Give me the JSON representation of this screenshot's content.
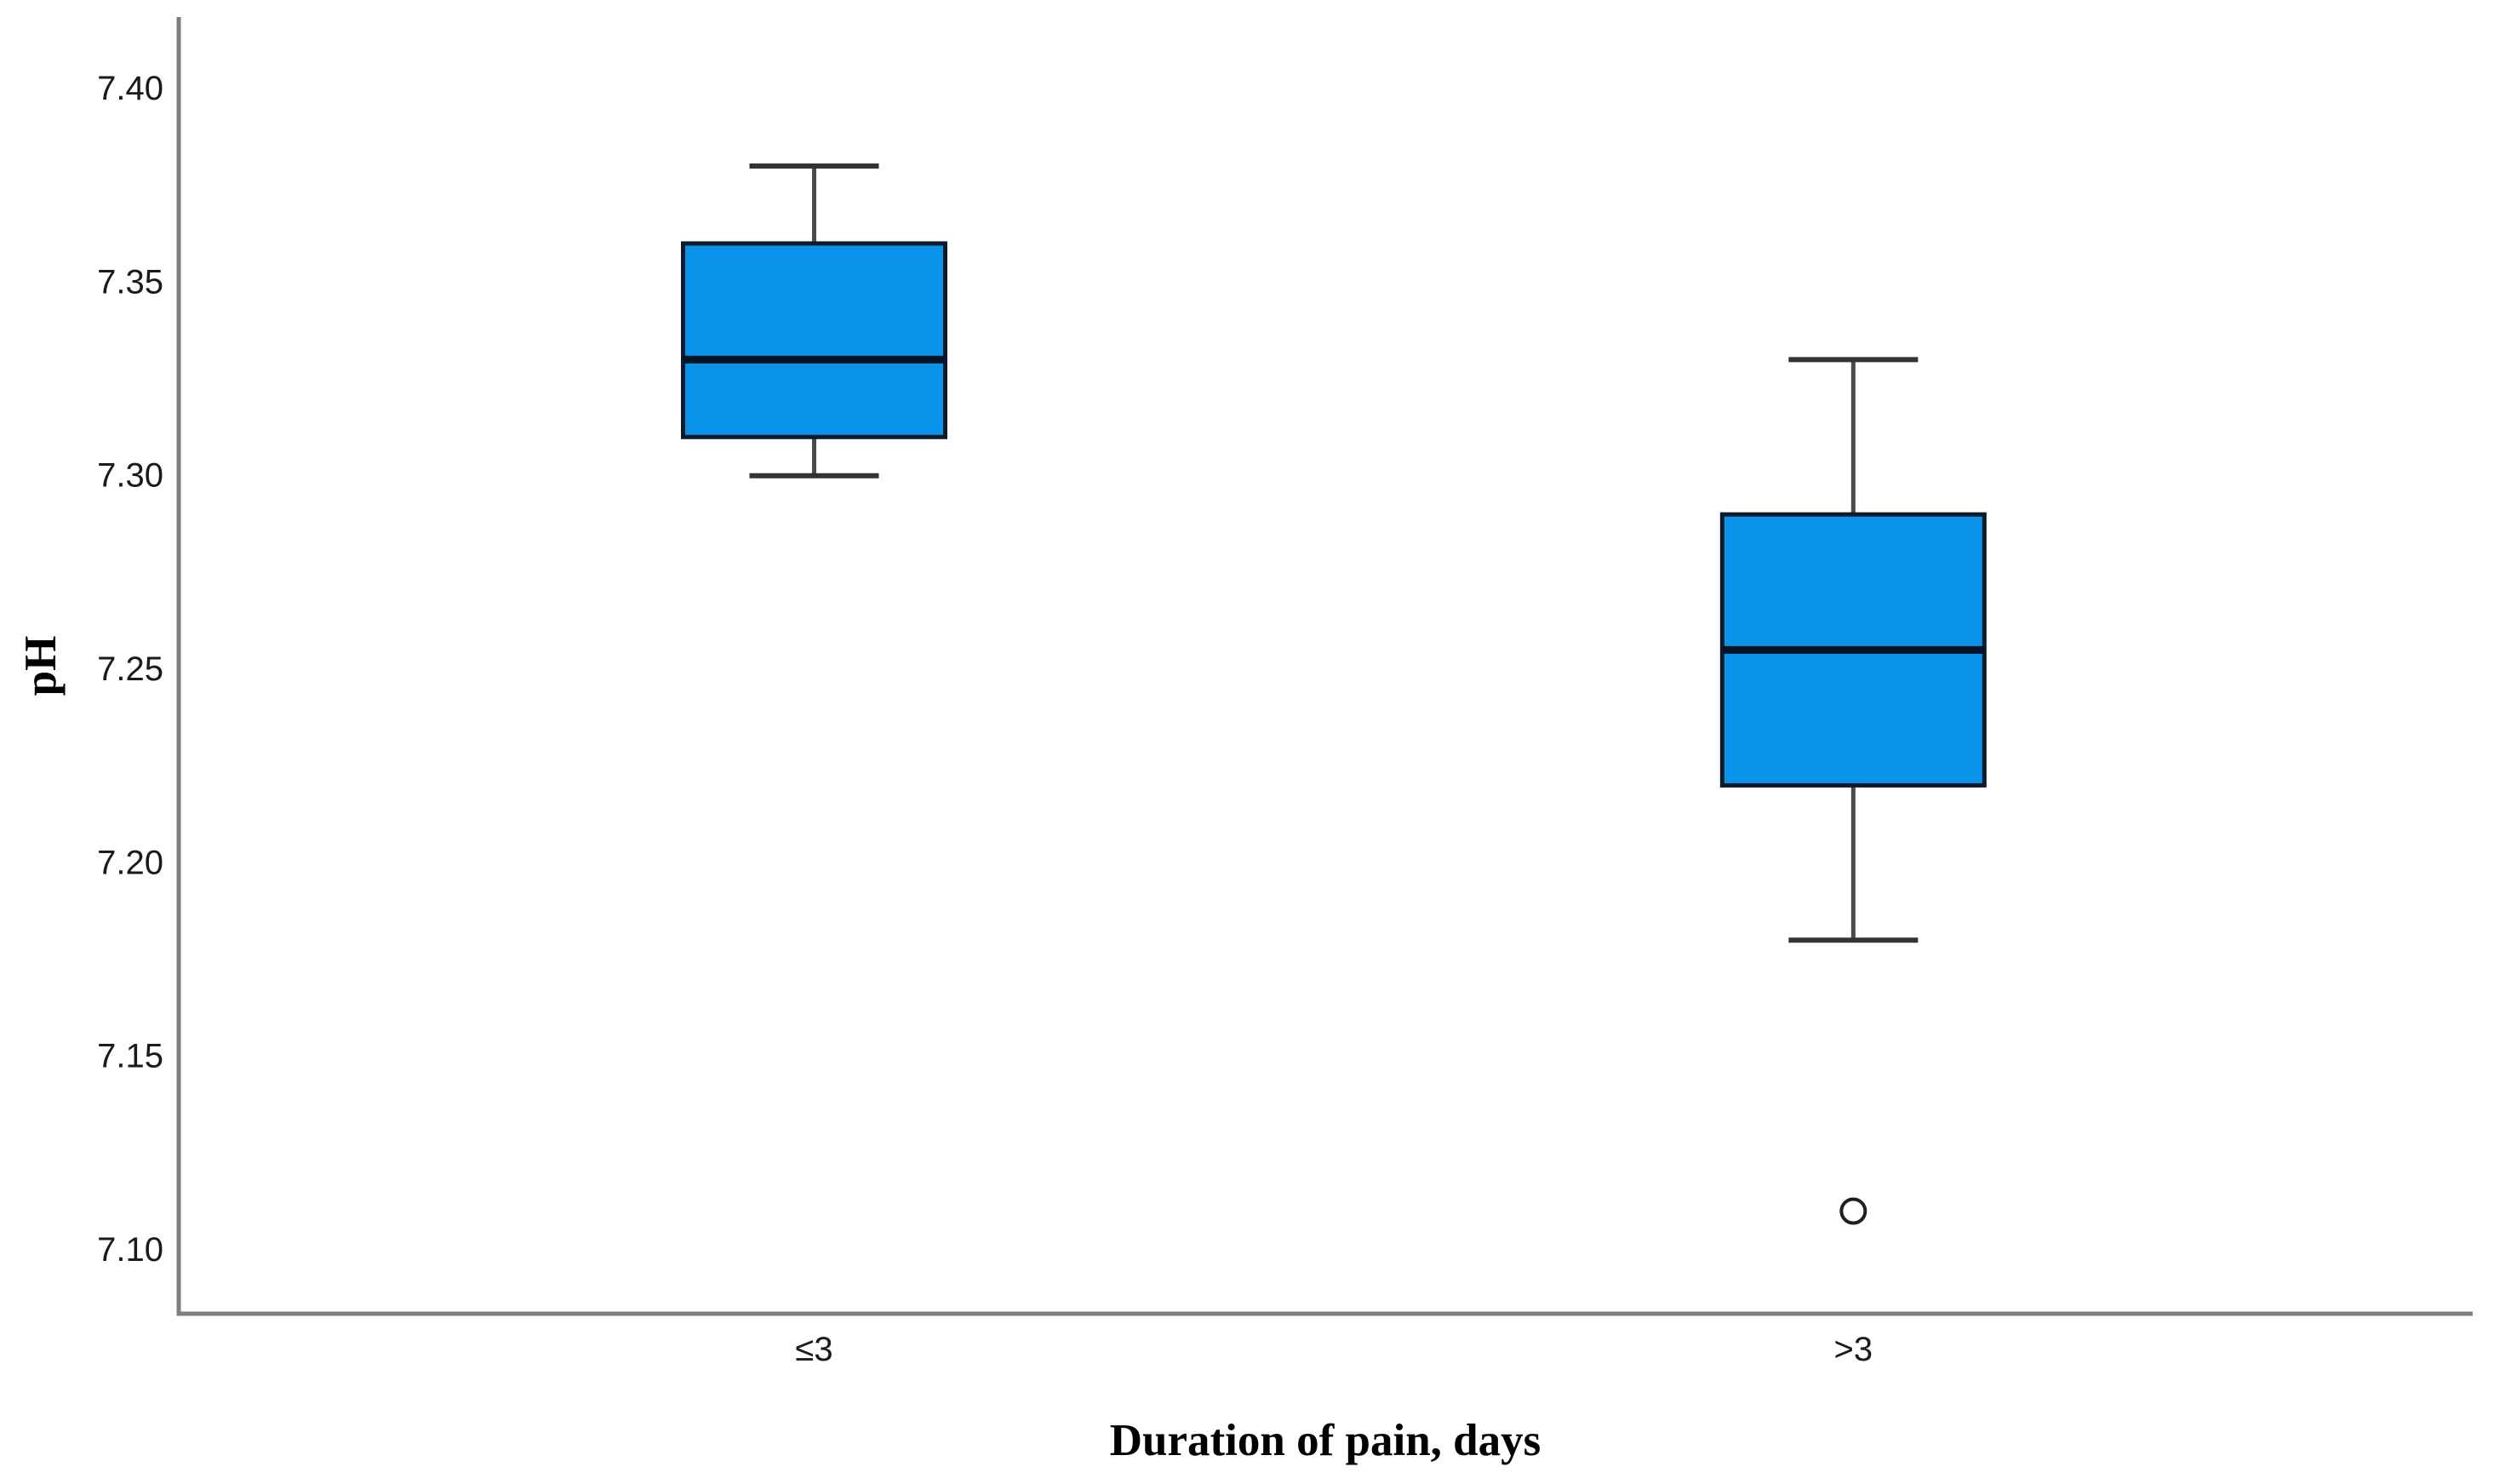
{
  "chart_data": {
    "type": "boxplot",
    "title": "",
    "xlabel": "Duration of pain, days",
    "ylabel": "pH",
    "categories": [
      "≤3",
      ">3"
    ],
    "series": [
      {
        "category": "≤3",
        "whisker_low": 7.3,
        "q1": 7.31,
        "median": 7.33,
        "q3": 7.36,
        "whisker_high": 7.38,
        "outliers": []
      },
      {
        "category": ">3",
        "whisker_low": 7.18,
        "q1": 7.22,
        "median": 7.255,
        "q3": 7.29,
        "whisker_high": 7.33,
        "outliers": [
          7.11
        ]
      }
    ],
    "y_ticks": [
      7.4,
      7.35,
      7.3,
      7.25,
      7.2,
      7.15,
      7.1
    ],
    "y_tick_labels": [
      "7.40",
      "7.35",
      "7.30",
      "7.25",
      "7.20",
      "7.15",
      "7.10"
    ],
    "ylim": [
      7.0835,
      7.4185
    ],
    "grid": false,
    "legend_position": "none"
  },
  "colors": {
    "box_fill": "#0a93e8",
    "box_border": "#0c1a2b",
    "median_line": "#081325",
    "whisker_line": "#4a4a4a",
    "whisker_cap": "#333333",
    "outlier_stroke": "#1f1f1f",
    "axis_line": "#7e7e7e",
    "tick_text": "#1a1a1a",
    "background": "#ffffff"
  }
}
